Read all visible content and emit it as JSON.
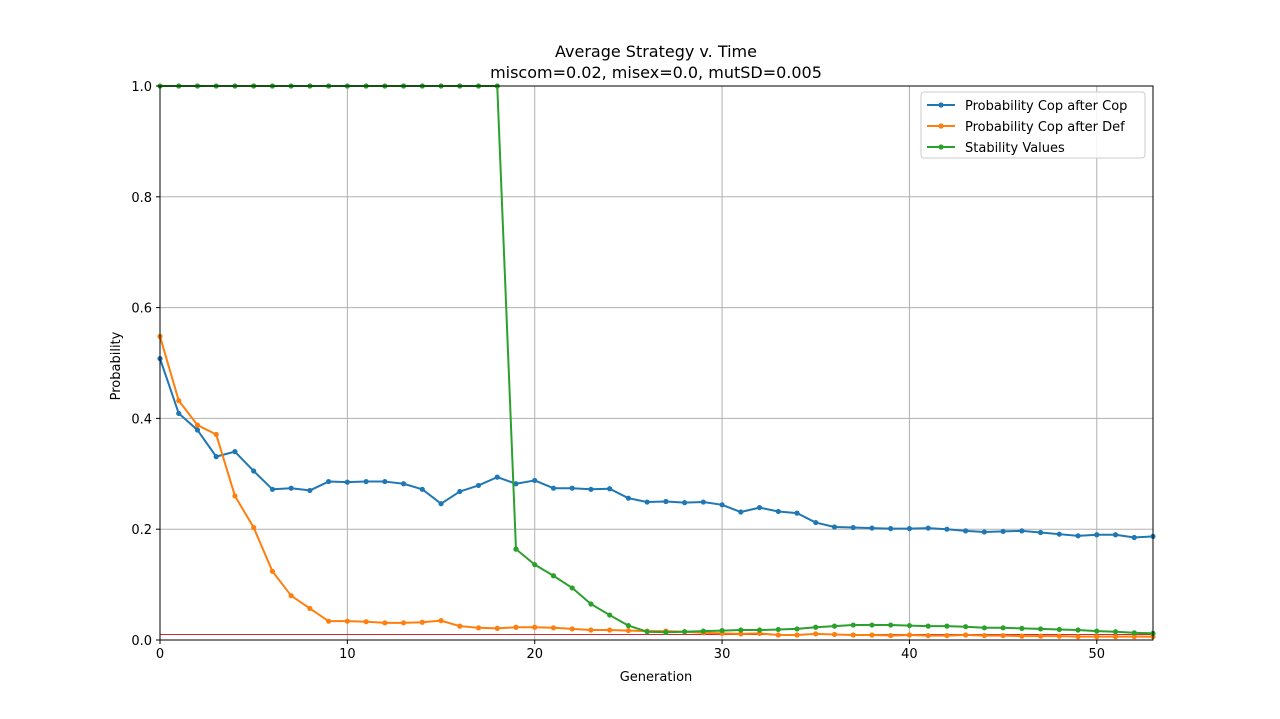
{
  "chart_data": {
    "type": "line",
    "title": "Average Strategy v. Time",
    "subtitle": "miscom=0.02, misex=0.0, mutSD=0.005",
    "xlabel": "Generation",
    "ylabel": "Probability",
    "xlim": [
      0,
      53
    ],
    "ylim": [
      0,
      1.0
    ],
    "xticks": [
      0,
      10,
      20,
      30,
      40,
      50
    ],
    "yticks": [
      0.0,
      0.2,
      0.4,
      0.6,
      0.8,
      1.0
    ],
    "xtick_labels": [
      "0",
      "10",
      "20",
      "30",
      "40",
      "50"
    ],
    "ytick_labels": [
      "0.0",
      "0.2",
      "0.4",
      "0.6",
      "0.8",
      "1.0"
    ],
    "grid": true,
    "legend_position": "top-right",
    "reference_line": {
      "y": 0.01,
      "color": "#d62728"
    },
    "x": [
      0,
      1,
      2,
      3,
      4,
      5,
      6,
      7,
      8,
      9,
      10,
      11,
      12,
      13,
      14,
      15,
      16,
      17,
      18,
      19,
      20,
      21,
      22,
      23,
      24,
      25,
      26,
      27,
      28,
      29,
      30,
      31,
      32,
      33,
      34,
      35,
      36,
      37,
      38,
      39,
      40,
      41,
      42,
      43,
      44,
      45,
      46,
      47,
      48,
      49,
      50,
      51,
      52,
      53
    ],
    "series": [
      {
        "name": "Probability Cop after Cop",
        "color": "#1f77b4",
        "values": [
          0.508,
          0.409,
          0.379,
          0.331,
          0.34,
          0.305,
          0.272,
          0.274,
          0.27,
          0.286,
          0.285,
          0.286,
          0.286,
          0.282,
          0.272,
          0.246,
          0.268,
          0.279,
          0.294,
          0.282,
          0.288,
          0.274,
          0.274,
          0.272,
          0.273,
          0.256,
          0.249,
          0.25,
          0.248,
          0.249,
          0.244,
          0.231,
          0.239,
          0.232,
          0.229,
          0.212,
          0.204,
          0.203,
          0.202,
          0.201,
          0.201,
          0.202,
          0.2,
          0.197,
          0.195,
          0.196,
          0.197,
          0.194,
          0.191,
          0.188,
          0.19,
          0.19,
          0.185,
          0.187
        ]
      },
      {
        "name": "Probability Cop after Def",
        "color": "#ff7f0e",
        "values": [
          0.548,
          0.432,
          0.388,
          0.371,
          0.26,
          0.203,
          0.124,
          0.08,
          0.057,
          0.034,
          0.034,
          0.033,
          0.031,
          0.031,
          0.032,
          0.035,
          0.025,
          0.022,
          0.021,
          0.023,
          0.023,
          0.022,
          0.02,
          0.018,
          0.018,
          0.017,
          0.016,
          0.016,
          0.015,
          0.013,
          0.012,
          0.011,
          0.012,
          0.009,
          0.009,
          0.011,
          0.01,
          0.009,
          0.009,
          0.008,
          0.009,
          0.008,
          0.008,
          0.009,
          0.008,
          0.008,
          0.007,
          0.007,
          0.007,
          0.006,
          0.006,
          0.006,
          0.006,
          0.006
        ]
      },
      {
        "name": "Stability Values",
        "color": "#2ca02c",
        "values": [
          1.0,
          1.0,
          1.0,
          1.0,
          1.0,
          1.0,
          1.0,
          1.0,
          1.0,
          1.0,
          1.0,
          1.0,
          1.0,
          1.0,
          1.0,
          1.0,
          1.0,
          1.0,
          1.0,
          0.164,
          0.136,
          0.116,
          0.094,
          0.065,
          0.045,
          0.026,
          0.015,
          0.014,
          0.015,
          0.016,
          0.017,
          0.018,
          0.018,
          0.019,
          0.02,
          0.023,
          0.025,
          0.027,
          0.027,
          0.027,
          0.026,
          0.025,
          0.025,
          0.024,
          0.022,
          0.022,
          0.021,
          0.02,
          0.019,
          0.018,
          0.016,
          0.015,
          0.013,
          0.012
        ]
      }
    ]
  }
}
